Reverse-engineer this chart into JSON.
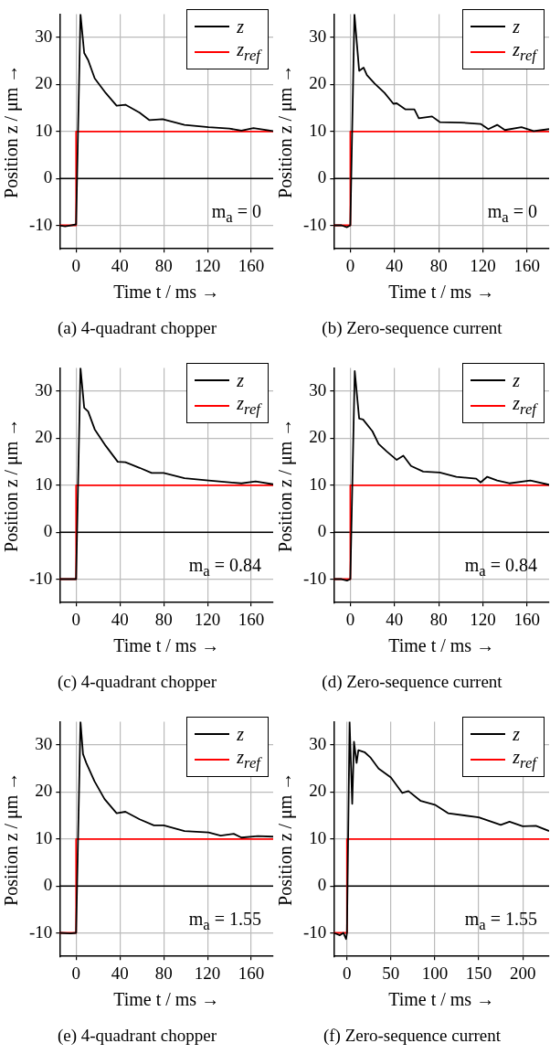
{
  "chart_data": [
    {
      "type": "line",
      "title": "(a) 4-quadrant chopper",
      "xlabel": "Time t / ms →",
      "ylabel": "Position z / μm →",
      "xlim": [
        -15,
        180
      ],
      "ylim": [
        -15,
        35
      ],
      "xticks": [
        0,
        40,
        80,
        120,
        160
      ],
      "yticks": [
        -10,
        0,
        10,
        20,
        30
      ],
      "grid": true,
      "legend": "top right",
      "marker": "none",
      "ref_lines": [
        {
          "axis": "y",
          "value": 0,
          "color": "#000000"
        }
      ],
      "annotations": [
        "m$_{a}$ = 0"
      ],
      "series": [
        {
          "name": "z",
          "color": "#000000",
          "x": [
            -15,
            -10,
            -5,
            0,
            4,
            7.4,
            11,
            17,
            27,
            37,
            45,
            58,
            67,
            79,
            99,
            121,
            140,
            151,
            162,
            180
          ],
          "values": [
            -10,
            -10.2,
            -10,
            -9.8,
            35,
            26.7,
            25.2,
            21.3,
            18.2,
            15.5,
            15.7,
            14,
            12.4,
            12.6,
            11.4,
            10.9,
            10.6,
            10.2,
            10.7,
            10.1
          ]
        },
        {
          "name": "z$_{ref}$",
          "color": "#ff0000",
          "x": [
            -15,
            0,
            0,
            180
          ],
          "values": [
            -10,
            -10,
            10,
            10
          ]
        }
      ]
    },
    {
      "type": "line",
      "title": "(b) Zero-sequence current",
      "xlabel": "Time t / ms →",
      "ylabel": "Position z / μm →",
      "xlim": [
        -15,
        180
      ],
      "ylim": [
        -15,
        35
      ],
      "xticks": [
        0,
        40,
        80,
        120,
        160
      ],
      "yticks": [
        -10,
        0,
        10,
        20,
        30
      ],
      "grid": true,
      "legend": "top right",
      "marker": "none",
      "ref_lines": [
        {
          "axis": "y",
          "value": 0,
          "color": "#000000"
        }
      ],
      "annotations": [
        "m$_{a}$ = 0"
      ],
      "series": [
        {
          "name": "z",
          "color": "#000000",
          "x": [
            -15,
            -8,
            -3,
            0,
            3.7,
            8,
            12,
            15,
            22,
            31,
            39,
            42,
            50,
            58,
            62,
            74,
            81,
            100,
            118,
            125,
            133,
            140,
            155,
            166,
            180
          ],
          "values": [
            -10,
            -10,
            -10.4,
            -10,
            35,
            22.9,
            23.6,
            22,
            20.2,
            18.2,
            15.9,
            16,
            14.7,
            14.7,
            12.8,
            13.2,
            12,
            11.9,
            11.6,
            10.5,
            11.4,
            10.3,
            10.9,
            10.1,
            10.5
          ]
        },
        {
          "name": "z$_{ref}$",
          "color": "#ff0000",
          "x": [
            -15,
            0,
            0,
            180
          ],
          "values": [
            -10,
            -10,
            10,
            10
          ]
        }
      ]
    },
    {
      "type": "line",
      "title": "(c) 4-quadrant chopper",
      "xlabel": "Time t / ms →",
      "ylabel": "Position z / μm →",
      "xlim": [
        -15,
        180
      ],
      "ylim": [
        -15,
        35
      ],
      "xticks": [
        0,
        40,
        80,
        120,
        160
      ],
      "yticks": [
        -10,
        0,
        10,
        20,
        30
      ],
      "grid": true,
      "legend": "top right",
      "marker": "none",
      "ref_lines": [
        {
          "axis": "y",
          "value": 0,
          "color": "#000000"
        }
      ],
      "annotations": [
        "m$_{a}$ = 0.84"
      ],
      "series": [
        {
          "name": "z",
          "color": "#000000",
          "x": [
            -15,
            -5,
            0,
            4,
            7.4,
            11,
            17,
            27,
            38,
            45,
            58,
            69,
            80,
            99,
            121,
            140,
            151,
            164,
            180
          ],
          "values": [
            -10,
            -10,
            -10,
            35,
            26.5,
            25.7,
            21.9,
            18.4,
            15,
            14.9,
            13.7,
            12.6,
            12.6,
            11.5,
            11,
            10.6,
            10.4,
            10.8,
            10.2
          ]
        },
        {
          "name": "z$_{ref}$",
          "color": "#ff0000",
          "x": [
            -15,
            0,
            0,
            180
          ],
          "values": [
            -10,
            -10,
            10,
            10
          ]
        }
      ]
    },
    {
      "type": "line",
      "title": "(d) Zero-sequence current",
      "xlabel": "Time t / ms →",
      "ylabel": "Position z / μm →",
      "xlim": [
        -15,
        180
      ],
      "ylim": [
        -15,
        35
      ],
      "xticks": [
        0,
        40,
        80,
        120,
        160
      ],
      "yticks": [
        -10,
        0,
        10,
        20,
        30
      ],
      "grid": true,
      "legend": "top right",
      "marker": "none",
      "ref_lines": [
        {
          "axis": "y",
          "value": 0,
          "color": "#000000"
        }
      ],
      "annotations": [
        "m$_{a}$ = 0.84"
      ],
      "series": [
        {
          "name": "z",
          "color": "#000000",
          "x": [
            -15,
            -8,
            -3,
            0,
            4,
            8,
            11.5,
            20,
            25.6,
            33,
            42,
            48,
            55,
            66,
            81,
            96,
            114,
            118,
            124,
            133,
            144,
            163,
            180
          ],
          "values": [
            -10,
            -10,
            -10.3,
            -10,
            34.3,
            24.2,
            24,
            21.5,
            18.8,
            17.2,
            15.4,
            16.3,
            14.1,
            12.9,
            12.7,
            11.8,
            11.4,
            10.6,
            11.8,
            11,
            10.4,
            11,
            10.1
          ]
        },
        {
          "name": "z$_{ref}$",
          "color": "#ff0000",
          "x": [
            -15,
            0,
            0,
            180
          ],
          "values": [
            -10,
            -10,
            10,
            10
          ]
        }
      ]
    },
    {
      "type": "line",
      "title": "(e) 4-quadrant chopper",
      "xlabel": "Time t / ms →",
      "ylabel": "Position z / μm →",
      "xlim": [
        -15,
        180
      ],
      "ylim": [
        -15,
        35
      ],
      "xticks": [
        0,
        40,
        80,
        120,
        160
      ],
      "yticks": [
        -10,
        0,
        10,
        20,
        30
      ],
      "grid": true,
      "legend": "top right",
      "marker": "none",
      "ref_lines": [
        {
          "axis": "y",
          "value": 0,
          "color": "#000000"
        }
      ],
      "annotations": [
        "m$_{a}$ = 1.55"
      ],
      "series": [
        {
          "name": "z",
          "color": "#000000",
          "x": [
            -15,
            -5,
            0,
            4,
            6.3,
            9.3,
            16.8,
            26,
            37,
            45,
            58,
            71,
            80,
            99,
            121,
            132,
            144,
            151,
            166,
            180
          ],
          "values": [
            -10,
            -10.1,
            -10,
            35,
            28.1,
            26.2,
            22.3,
            18.5,
            15.5,
            15.8,
            14.2,
            12.9,
            12.9,
            11.7,
            11.4,
            10.7,
            11.1,
            10.3,
            10.6,
            10.5
          ]
        },
        {
          "name": "z$_{ref}$",
          "color": "#ff0000",
          "x": [
            -15,
            0,
            0,
            180
          ],
          "values": [
            -10,
            -10,
            10,
            10
          ]
        }
      ]
    },
    {
      "type": "line",
      "title": "(f) Zero-sequence current",
      "xlabel": "Time t / ms →",
      "ylabel": "Position z / μm →",
      "xlim": [
        -15,
        230
      ],
      "ylim": [
        -15,
        35
      ],
      "xticks": [
        0,
        50,
        100,
        150,
        200
      ],
      "yticks": [
        -10,
        0,
        10,
        20,
        30
      ],
      "grid": true,
      "legend": "top right",
      "marker": "none",
      "ref_lines": [
        {
          "axis": "y",
          "value": 0,
          "color": "#000000"
        }
      ],
      "annotations": [
        "m$_{a}$ = 1.55"
      ],
      "series": [
        {
          "name": "z",
          "color": "#000000",
          "x": [
            -15,
            -8,
            -4,
            -1,
            0,
            3,
            6,
            8,
            11,
            13,
            20,
            27,
            36,
            50,
            63,
            70,
            84,
            100,
            115,
            150,
            175,
            185,
            200,
            215,
            230
          ],
          "values": [
            -10,
            -10.5,
            -10,
            -11.3,
            -10,
            35,
            17.5,
            30.7,
            26.2,
            28.9,
            28.5,
            27.3,
            25,
            23.1,
            19.8,
            20.2,
            18.1,
            17.3,
            15.5,
            14.6,
            13,
            13.7,
            12.7,
            12.8,
            11.7
          ]
        },
        {
          "name": "z$_{ref}$",
          "color": "#ff0000",
          "x": [
            -15,
            0,
            0,
            230
          ],
          "values": [
            -10,
            -10,
            10,
            10
          ]
        }
      ]
    }
  ]
}
